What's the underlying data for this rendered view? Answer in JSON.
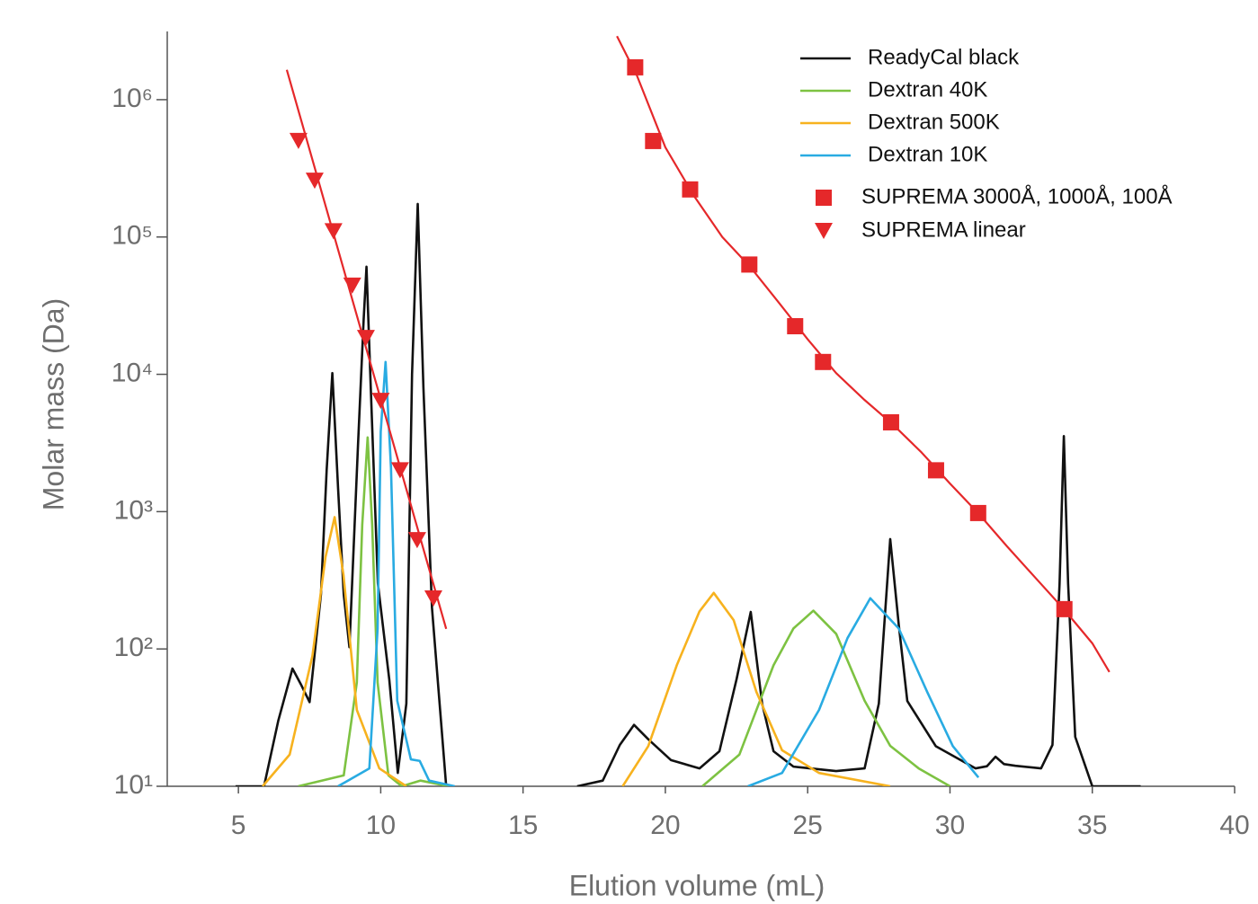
{
  "chart_data": {
    "type": "line",
    "x_label": "Elution volume (mL)",
    "y_label": "Molar mass (Da)",
    "yscale": "log",
    "xlim": [
      2.5,
      40
    ],
    "xticks": [
      5,
      10,
      15,
      20,
      25,
      30,
      35,
      40
    ],
    "ylim": [
      10,
      3000000
    ],
    "yticks": [
      {
        "value": 10,
        "label": "10¹"
      },
      {
        "value": 100,
        "label": "10²"
      },
      {
        "value": 1000,
        "label": "10³"
      },
      {
        "value": 10000,
        "label": "10⁴"
      },
      {
        "value": 100000,
        "label": "10⁵"
      },
      {
        "value": 1000000,
        "label": "10⁶"
      }
    ],
    "series": [
      {
        "name": "ReadyCal black",
        "color": "#111111",
        "kind": "line",
        "x": [
          4.9,
          5.9,
          6.4,
          6.9,
          7.2,
          7.5,
          7.9,
          8.1,
          8.3,
          8.5,
          8.7,
          8.9,
          9.2,
          9.4,
          9.5,
          9.65,
          9.9,
          10.3,
          10.6,
          10.9,
          11.1,
          11.3,
          11.5,
          11.8,
          12.3,
          14.6,
          16.9,
          17.8,
          18.4,
          18.9,
          19.4,
          20.2,
          21.2,
          21.9,
          22.5,
          23.0,
          23.4,
          23.8,
          24.5,
          26.0,
          27.0,
          27.5,
          27.9,
          28.2,
          28.5,
          29.5,
          30.9,
          31.3,
          31.6,
          31.9,
          32.3,
          33.2,
          33.6,
          33.85,
          34.0,
          34.15,
          34.4,
          35.0,
          36.7
        ],
        "values": [
          10,
          10,
          30,
          72,
          55,
          41,
          250,
          2000,
          10200,
          1500,
          250,
          103,
          3000,
          25000,
          60700,
          8000,
          300,
          60,
          12.5,
          40,
          10000,
          174000,
          8000,
          200,
          10,
          null,
          10,
          11,
          20,
          28,
          22,
          15.5,
          13.5,
          18,
          60,
          186,
          40,
          18,
          13.9,
          12.9,
          13.5,
          40,
          631,
          150,
          41.8,
          19.6,
          13.5,
          14,
          16.4,
          14.5,
          14.1,
          13.5,
          20,
          300,
          3550,
          300,
          22.9,
          10,
          10
        ]
      },
      {
        "name": "Dextran 40K",
        "color": "#7dc242",
        "kind": "line",
        "x": [
          7.1,
          8.7,
          9.16,
          9.35,
          9.54,
          9.7,
          9.89,
          10.27,
          10.74,
          11.4,
          12.4,
          14.6,
          21.3,
          22.6,
          23.8,
          24.5,
          25.2,
          26.0,
          27.0,
          27.9,
          28.9,
          30.0
        ],
        "values": [
          10,
          12,
          57,
          800,
          3470,
          800,
          57,
          12,
          10,
          11,
          10,
          null,
          10,
          17,
          76,
          141,
          190,
          129,
          42,
          19.7,
          13.5,
          10
        ]
      },
      {
        "name": "Dextran 500K",
        "color": "#f7b21e",
        "kind": "line",
        "x": [
          5.85,
          6.8,
          7.6,
          8.06,
          8.38,
          8.69,
          9.16,
          9.95,
          10.9,
          14.6,
          18.5,
          19.4,
          20.4,
          21.2,
          21.7,
          22.4,
          23.2,
          24.1,
          25.4,
          27.9
        ],
        "values": [
          10,
          17,
          89,
          467,
          912,
          347,
          36,
          13.5,
          10,
          null,
          10,
          19.6,
          76,
          188,
          256,
          162,
          48.6,
          18.3,
          12.5,
          10
        ]
      },
      {
        "name": "Dextran 10K",
        "color": "#29abe2",
        "kind": "line",
        "x": [
          8.5,
          9.6,
          9.89,
          10.0,
          10.17,
          10.36,
          10.58,
          11.06,
          11.37,
          11.7,
          12.6,
          14.6,
          22.9,
          24.1,
          25.4,
          26.4,
          27.2,
          28.2,
          29.2,
          30.1,
          31.0
        ],
        "values": [
          10,
          13.5,
          140,
          3830,
          12300,
          2090,
          42,
          15.7,
          15.3,
          11,
          10,
          null,
          10,
          12.5,
          36,
          120,
          234,
          141,
          48.6,
          19.6,
          11.6
        ]
      },
      {
        "name": "SUPREMA 3000Å, 1000Å, 100Å",
        "color": "#e5282a",
        "kind": "scatter",
        "marker": "square",
        "x": [
          18.94,
          19.57,
          20.87,
          22.95,
          24.56,
          25.54,
          27.93,
          29.51,
          30.99,
          34.02
        ],
        "values": [
          1720000,
          500000,
          222000,
          63000,
          22400,
          12300,
          4470,
          2000,
          977,
          195
        ]
      },
      {
        "name": "SUPREMA linear",
        "color": "#e5282a",
        "kind": "scatter",
        "marker": "triangle-down",
        "x": [
          7.11,
          7.68,
          8.34,
          9.0,
          9.48,
          10.0,
          10.68,
          11.28,
          11.85
        ],
        "values": [
          500000,
          257000,
          110000,
          44200,
          18400,
          6400,
          2000,
          620,
          233
        ]
      },
      {
        "color": "#e5282a",
        "kind": "line",
        "x": [
          18.3,
          19.0,
          20.0,
          21.0,
          22.0,
          23.0,
          24.0,
          25.0,
          26.0,
          27.0,
          28.0,
          29.0,
          30.0,
          31.0,
          32.0,
          33.0,
          34.0,
          35.0,
          35.6
        ],
        "values": [
          2900000,
          1500000,
          450000,
          200000,
          100000,
          60000,
          33000,
          18000,
          10200,
          6500,
          4300,
          2700,
          1600,
          970,
          560,
          330,
          195,
          110,
          68
        ]
      },
      {
        "color": "#e5282a",
        "kind": "line",
        "x": [
          6.7,
          12.3
        ],
        "values": [
          1650000,
          140
        ]
      }
    ]
  }
}
